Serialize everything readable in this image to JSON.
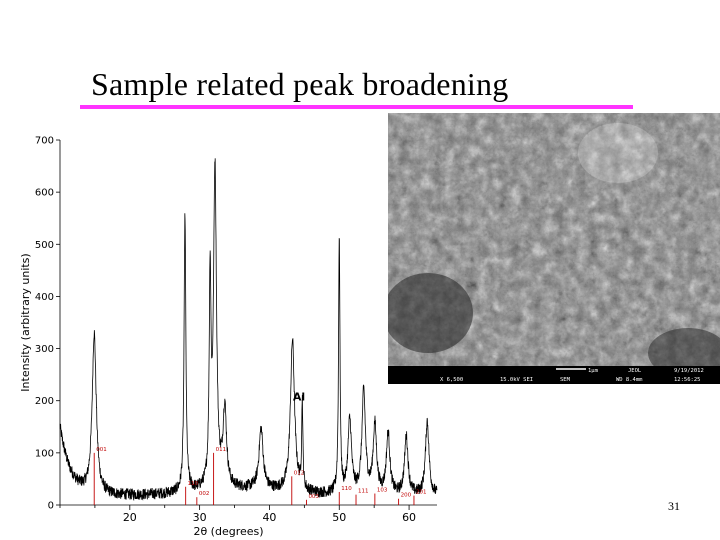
{
  "slide": {
    "title": "Sample related peak broadening",
    "page_number": "31",
    "accent_color": "#ff33ff"
  },
  "sem_image": {
    "caption_top": [
      "1µm",
      "JEOL",
      "9/19/2012"
    ],
    "caption_bottom": [
      "X 6,500",
      "15.0kV SEI",
      "SEM",
      "WD 8.4mm",
      "12:56:25"
    ]
  },
  "chart_data": {
    "type": "line",
    "title": "",
    "xlabel": "2θ (degrees)",
    "ylabel": "Intensity (arbitrary units)",
    "xlim": [
      10,
      64
    ],
    "ylim": [
      0,
      700
    ],
    "xticks": [
      20,
      30,
      40,
      50,
      60
    ],
    "yticks": [
      0,
      100,
      200,
      300,
      400,
      500,
      600,
      700
    ],
    "grid": false,
    "line_color": "#000000",
    "reference_color": "#c00000",
    "peak_annotation": {
      "text": "Al",
      "x": 44.5,
      "y": 200
    },
    "peaks": [
      {
        "x": 14.9,
        "y": 330
      },
      {
        "x": 27.9,
        "y": 555
      },
      {
        "x": 31.5,
        "y": 420
      },
      {
        "x": 32.2,
        "y": 640
      },
      {
        "x": 33.6,
        "y": 180
      },
      {
        "x": 38.8,
        "y": 145
      },
      {
        "x": 43.3,
        "y": 315
      },
      {
        "x": 44.7,
        "y": 190
      },
      {
        "x": 50.0,
        "y": 515
      },
      {
        "x": 51.5,
        "y": 160
      },
      {
        "x": 53.5,
        "y": 215
      },
      {
        "x": 55.1,
        "y": 150
      },
      {
        "x": 57.0,
        "y": 135
      },
      {
        "x": 59.6,
        "y": 130
      },
      {
        "x": 62.6,
        "y": 160
      }
    ],
    "reference_lines": [
      {
        "x": 14.9,
        "top": 100,
        "label": "001"
      },
      {
        "x": 28.0,
        "top": 35,
        "label": "110"
      },
      {
        "x": 29.6,
        "top": 15,
        "label": "002"
      },
      {
        "x": 32.0,
        "top": 100,
        "label": "011"
      },
      {
        "x": 43.2,
        "top": 55,
        "label": "012"
      },
      {
        "x": 45.3,
        "top": 10,
        "label": "003"
      },
      {
        "x": 50.0,
        "top": 25,
        "label": "110"
      },
      {
        "x": 52.4,
        "top": 20,
        "label": "111"
      },
      {
        "x": 55.1,
        "top": 22,
        "label": "103"
      },
      {
        "x": 58.5,
        "top": 12,
        "label": "200"
      },
      {
        "x": 60.7,
        "top": 18,
        "label": "201"
      }
    ]
  }
}
